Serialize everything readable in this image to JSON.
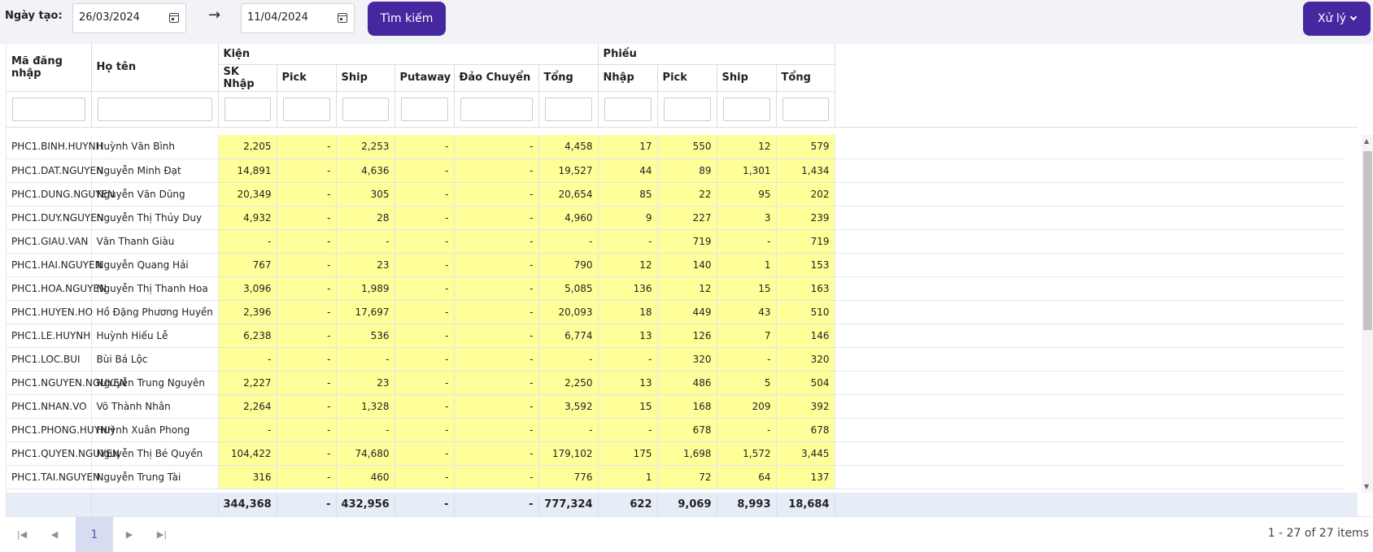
{
  "filter": {
    "date_label": "Ngày tạo:",
    "from_date": "26/03/2024",
    "to_date": "11/04/2024",
    "arrow": "→",
    "search_label": "Tìm kiếm",
    "action_label": "Xử lý"
  },
  "table": {
    "group_headers": {
      "col_login": "Mã đăng nhập",
      "col_name": "Họ tên",
      "kien": "Kiện",
      "phieu": "Phiếu"
    },
    "kien_columns": [
      "SK Nhập",
      "Pick",
      "Ship",
      "Putaway",
      "Đảo Chuyển",
      "Tổng"
    ],
    "phieu_columns": [
      "Nhập",
      "Pick",
      "Ship",
      "Tổng"
    ],
    "rows": [
      {
        "login": "PHC1.BINH.HUYNH",
        "name": "Huỳnh Văn Bình",
        "values": [
          "2,205",
          "-",
          "2,253",
          "-",
          "-",
          "4,458",
          "17",
          "550",
          "12",
          "579"
        ]
      },
      {
        "login": "PHC1.DAT.NGUYEN",
        "name": "Nguyễn Minh Đạt",
        "values": [
          "14,891",
          "-",
          "4,636",
          "-",
          "-",
          "19,527",
          "44",
          "89",
          "1,301",
          "1,434"
        ]
      },
      {
        "login": "PHC1.DUNG.NGUYEN",
        "name": "Nguyễn Văn Dũng",
        "values": [
          "20,349",
          "-",
          "305",
          "-",
          "-",
          "20,654",
          "85",
          "22",
          "95",
          "202"
        ]
      },
      {
        "login": "PHC1.DUY.NGUYEN",
        "name": "Nguyễn Thị Thủy Duy",
        "values": [
          "4,932",
          "-",
          "28",
          "-",
          "-",
          "4,960",
          "9",
          "227",
          "3",
          "239"
        ]
      },
      {
        "login": "PHC1.GIAU.VAN",
        "name": "Văn Thanh Giàu",
        "values": [
          "-",
          "-",
          "-",
          "-",
          "-",
          "-",
          "-",
          "719",
          "-",
          "719"
        ]
      },
      {
        "login": "PHC1.HAI.NGUYEN",
        "name": "Nguyễn Quang Hải",
        "values": [
          "767",
          "-",
          "23",
          "-",
          "-",
          "790",
          "12",
          "140",
          "1",
          "153"
        ]
      },
      {
        "login": "PHC1.HOA.NGUYEN",
        "name": "Nguyễn Thị Thanh Hoa",
        "values": [
          "3,096",
          "-",
          "1,989",
          "-",
          "-",
          "5,085",
          "136",
          "12",
          "15",
          "163"
        ]
      },
      {
        "login": "PHC1.HUYEN.HO",
        "name": "Hồ Đặng Phương Huyền",
        "values": [
          "2,396",
          "-",
          "17,697",
          "-",
          "-",
          "20,093",
          "18",
          "449",
          "43",
          "510"
        ]
      },
      {
        "login": "PHC1.LE.HUYNH",
        "name": "Huỳnh Hiếu Lễ",
        "values": [
          "6,238",
          "-",
          "536",
          "-",
          "-",
          "6,774",
          "13",
          "126",
          "7",
          "146"
        ]
      },
      {
        "login": "PHC1.LOC.BUI",
        "name": "Bùi Bá Lộc",
        "values": [
          "-",
          "-",
          "-",
          "-",
          "-",
          "-",
          "-",
          "320",
          "-",
          "320"
        ]
      },
      {
        "login": "PHC1.NGUYEN.NGUYEN",
        "name": "Nguyễn Trung Nguyên",
        "values": [
          "2,227",
          "-",
          "23",
          "-",
          "-",
          "2,250",
          "13",
          "486",
          "5",
          "504"
        ]
      },
      {
        "login": "PHC1.NHAN.VO",
        "name": "Võ Thành Nhân",
        "values": [
          "2,264",
          "-",
          "1,328",
          "-",
          "-",
          "3,592",
          "15",
          "168",
          "209",
          "392"
        ]
      },
      {
        "login": "PHC1.PHONG.HUYNH",
        "name": "Huỳnh Xuân Phong",
        "values": [
          "-",
          "-",
          "-",
          "-",
          "-",
          "-",
          "-",
          "678",
          "-",
          "678"
        ]
      },
      {
        "login": "PHC1.QUYEN.NGUYEN",
        "name": "Nguyễn Thị Bé Quyền",
        "values": [
          "104,422",
          "-",
          "74,680",
          "-",
          "-",
          "179,102",
          "175",
          "1,698",
          "1,572",
          "3,445"
        ]
      },
      {
        "login": "PHC1.TAI.NGUYEN",
        "name": "Nguyễn Trung Tài",
        "values": [
          "316",
          "-",
          "460",
          "-",
          "-",
          "776",
          "1",
          "72",
          "64",
          "137"
        ]
      }
    ],
    "totals": [
      "344,368",
      "-",
      "432,956",
      "-",
      "-",
      "777,324",
      "622",
      "9,069",
      "8,993",
      "18,684"
    ]
  },
  "pager": {
    "current_page": "1",
    "info": "1 - 27 of 27 items"
  },
  "colors": {
    "accent": "#4527a0",
    "cell_highlight": "#ffff9a",
    "footer_bg": "#e6edf6"
  }
}
